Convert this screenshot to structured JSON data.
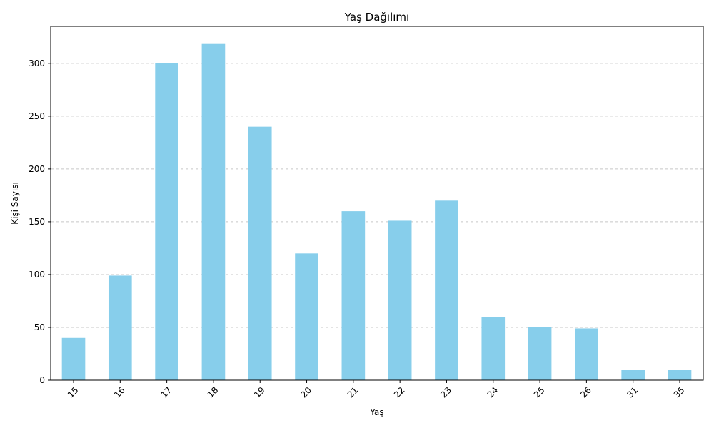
{
  "chart_data": {
    "type": "bar",
    "title": "Yaş Dağılımı",
    "xlabel": "Yaş",
    "ylabel": "Kişi Sayısı",
    "categories": [
      "15",
      "16",
      "17",
      "18",
      "19",
      "20",
      "21",
      "22",
      "23",
      "24",
      "25",
      "26",
      "31",
      "35"
    ],
    "values": [
      40,
      99,
      300,
      319,
      240,
      120,
      160,
      151,
      170,
      60,
      50,
      49,
      10,
      10
    ],
    "ylim": [
      0,
      335
    ],
    "yticks": [
      "0",
      "50",
      "100",
      "150",
      "200",
      "250",
      "300"
    ],
    "grid": "y-dashed",
    "legend": "none",
    "bar_color": "#87ceeb",
    "grid_color": "#c7c7c7"
  }
}
